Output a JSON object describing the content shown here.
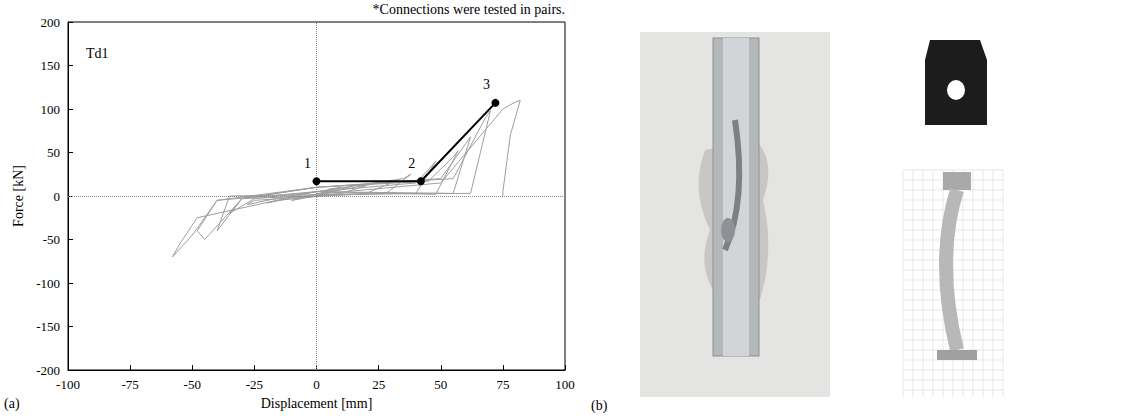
{
  "chart_data": {
    "type": "line",
    "xlabel": "Displacement [mm]",
    "ylabel": "Force [kN]",
    "xlim": [
      -100,
      100
    ],
    "xticks": [
      -100,
      -75,
      -50,
      -25,
      0,
      25,
      50,
      75,
      100
    ],
    "ylim": [
      -200,
      200
    ],
    "yticks": [
      -200,
      -150,
      -100,
      -50,
      0,
      50,
      100,
      150,
      200
    ],
    "grid": false,
    "annotations": {
      "note": "*Connections were tested in pairs.",
      "specimen": "Td1"
    },
    "panel_labels": [
      "(a)",
      "(b)"
    ],
    "zero_lines": {
      "x": 0,
      "y": 0
    },
    "series": [
      {
        "color": "#9e9e9e",
        "line_style": "solid",
        "x": [
          0,
          5,
          10,
          0,
          -10,
          0,
          15,
          20,
          10,
          -15,
          -20,
          -10,
          0,
          25,
          30,
          20,
          -25,
          -28,
          -15,
          0,
          35,
          38,
          28,
          -30,
          -35,
          -25,
          0,
          40,
          45,
          48,
          40,
          -35,
          -40,
          -30,
          0,
          45,
          55,
          57,
          48,
          0,
          -40,
          -48,
          -45,
          -30,
          0,
          50,
          60,
          62,
          55,
          0,
          -48,
          -55,
          -58,
          -50,
          -40,
          0,
          55,
          68,
          70,
          62,
          0,
          50,
          75,
          80,
          82,
          78,
          75,
          75
        ],
        "values": [
          0,
          8,
          10,
          2,
          -5,
          0,
          12,
          12,
          3,
          -5,
          -8,
          -2,
          2,
          15,
          15,
          3,
          -5,
          -10,
          -2,
          5,
          20,
          25,
          3,
          -3,
          -20,
          -3,
          5,
          15,
          30,
          40,
          3,
          0,
          -40,
          -3,
          10,
          17,
          45,
          52,
          2,
          5,
          -5,
          -40,
          -50,
          -3,
          10,
          20,
          60,
          68,
          3,
          5,
          -25,
          -55,
          -70,
          -45,
          -5,
          10,
          20,
          90,
          98,
          3,
          2,
          15,
          100,
          108,
          110,
          70,
          5,
          0
        ]
      },
      {
        "color": "#000000",
        "line_style": "solid",
        "marker": "circle",
        "x": [
          0,
          42,
          72
        ],
        "values": [
          17,
          17,
          107
        ],
        "point_labels": [
          "1",
          "2",
          "3"
        ]
      }
    ]
  }
}
